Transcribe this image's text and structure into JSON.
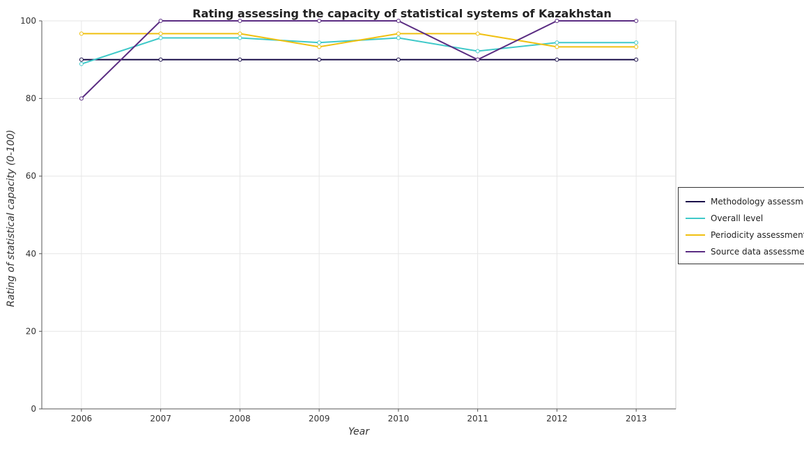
{
  "chart_data": {
    "type": "line",
    "title": "Rating assessing the capacity of statistical systems of Kazakhstan",
    "xlabel": "Year",
    "ylabel": "Rating of statistical capacity (0-100)",
    "x": [
      "2006",
      "2007",
      "2008",
      "2009",
      "2010",
      "2011",
      "2012",
      "2013"
    ],
    "ylim": [
      0,
      100
    ],
    "yticks": [
      0,
      20,
      40,
      60,
      80,
      100
    ],
    "grid": true,
    "legend_position": "right",
    "series": [
      {
        "name": "Methodology assessment",
        "color": "#1a0f4a",
        "values": [
          90,
          90,
          90,
          90,
          90,
          90,
          90,
          90
        ]
      },
      {
        "name": "Overall level",
        "color": "#3fc9c9",
        "values": [
          88.9,
          95.6,
          95.6,
          94.4,
          95.6,
          92.2,
          94.4,
          94.4
        ]
      },
      {
        "name": "Periodicity assessment",
        "color": "#f0c010",
        "values": [
          96.7,
          96.7,
          96.7,
          93.3,
          96.7,
          96.7,
          93.3,
          93.3
        ]
      },
      {
        "name": "Source data assessment",
        "color": "#5a2c82",
        "values": [
          80,
          100,
          100,
          100,
          100,
          90,
          100,
          100
        ]
      }
    ]
  }
}
